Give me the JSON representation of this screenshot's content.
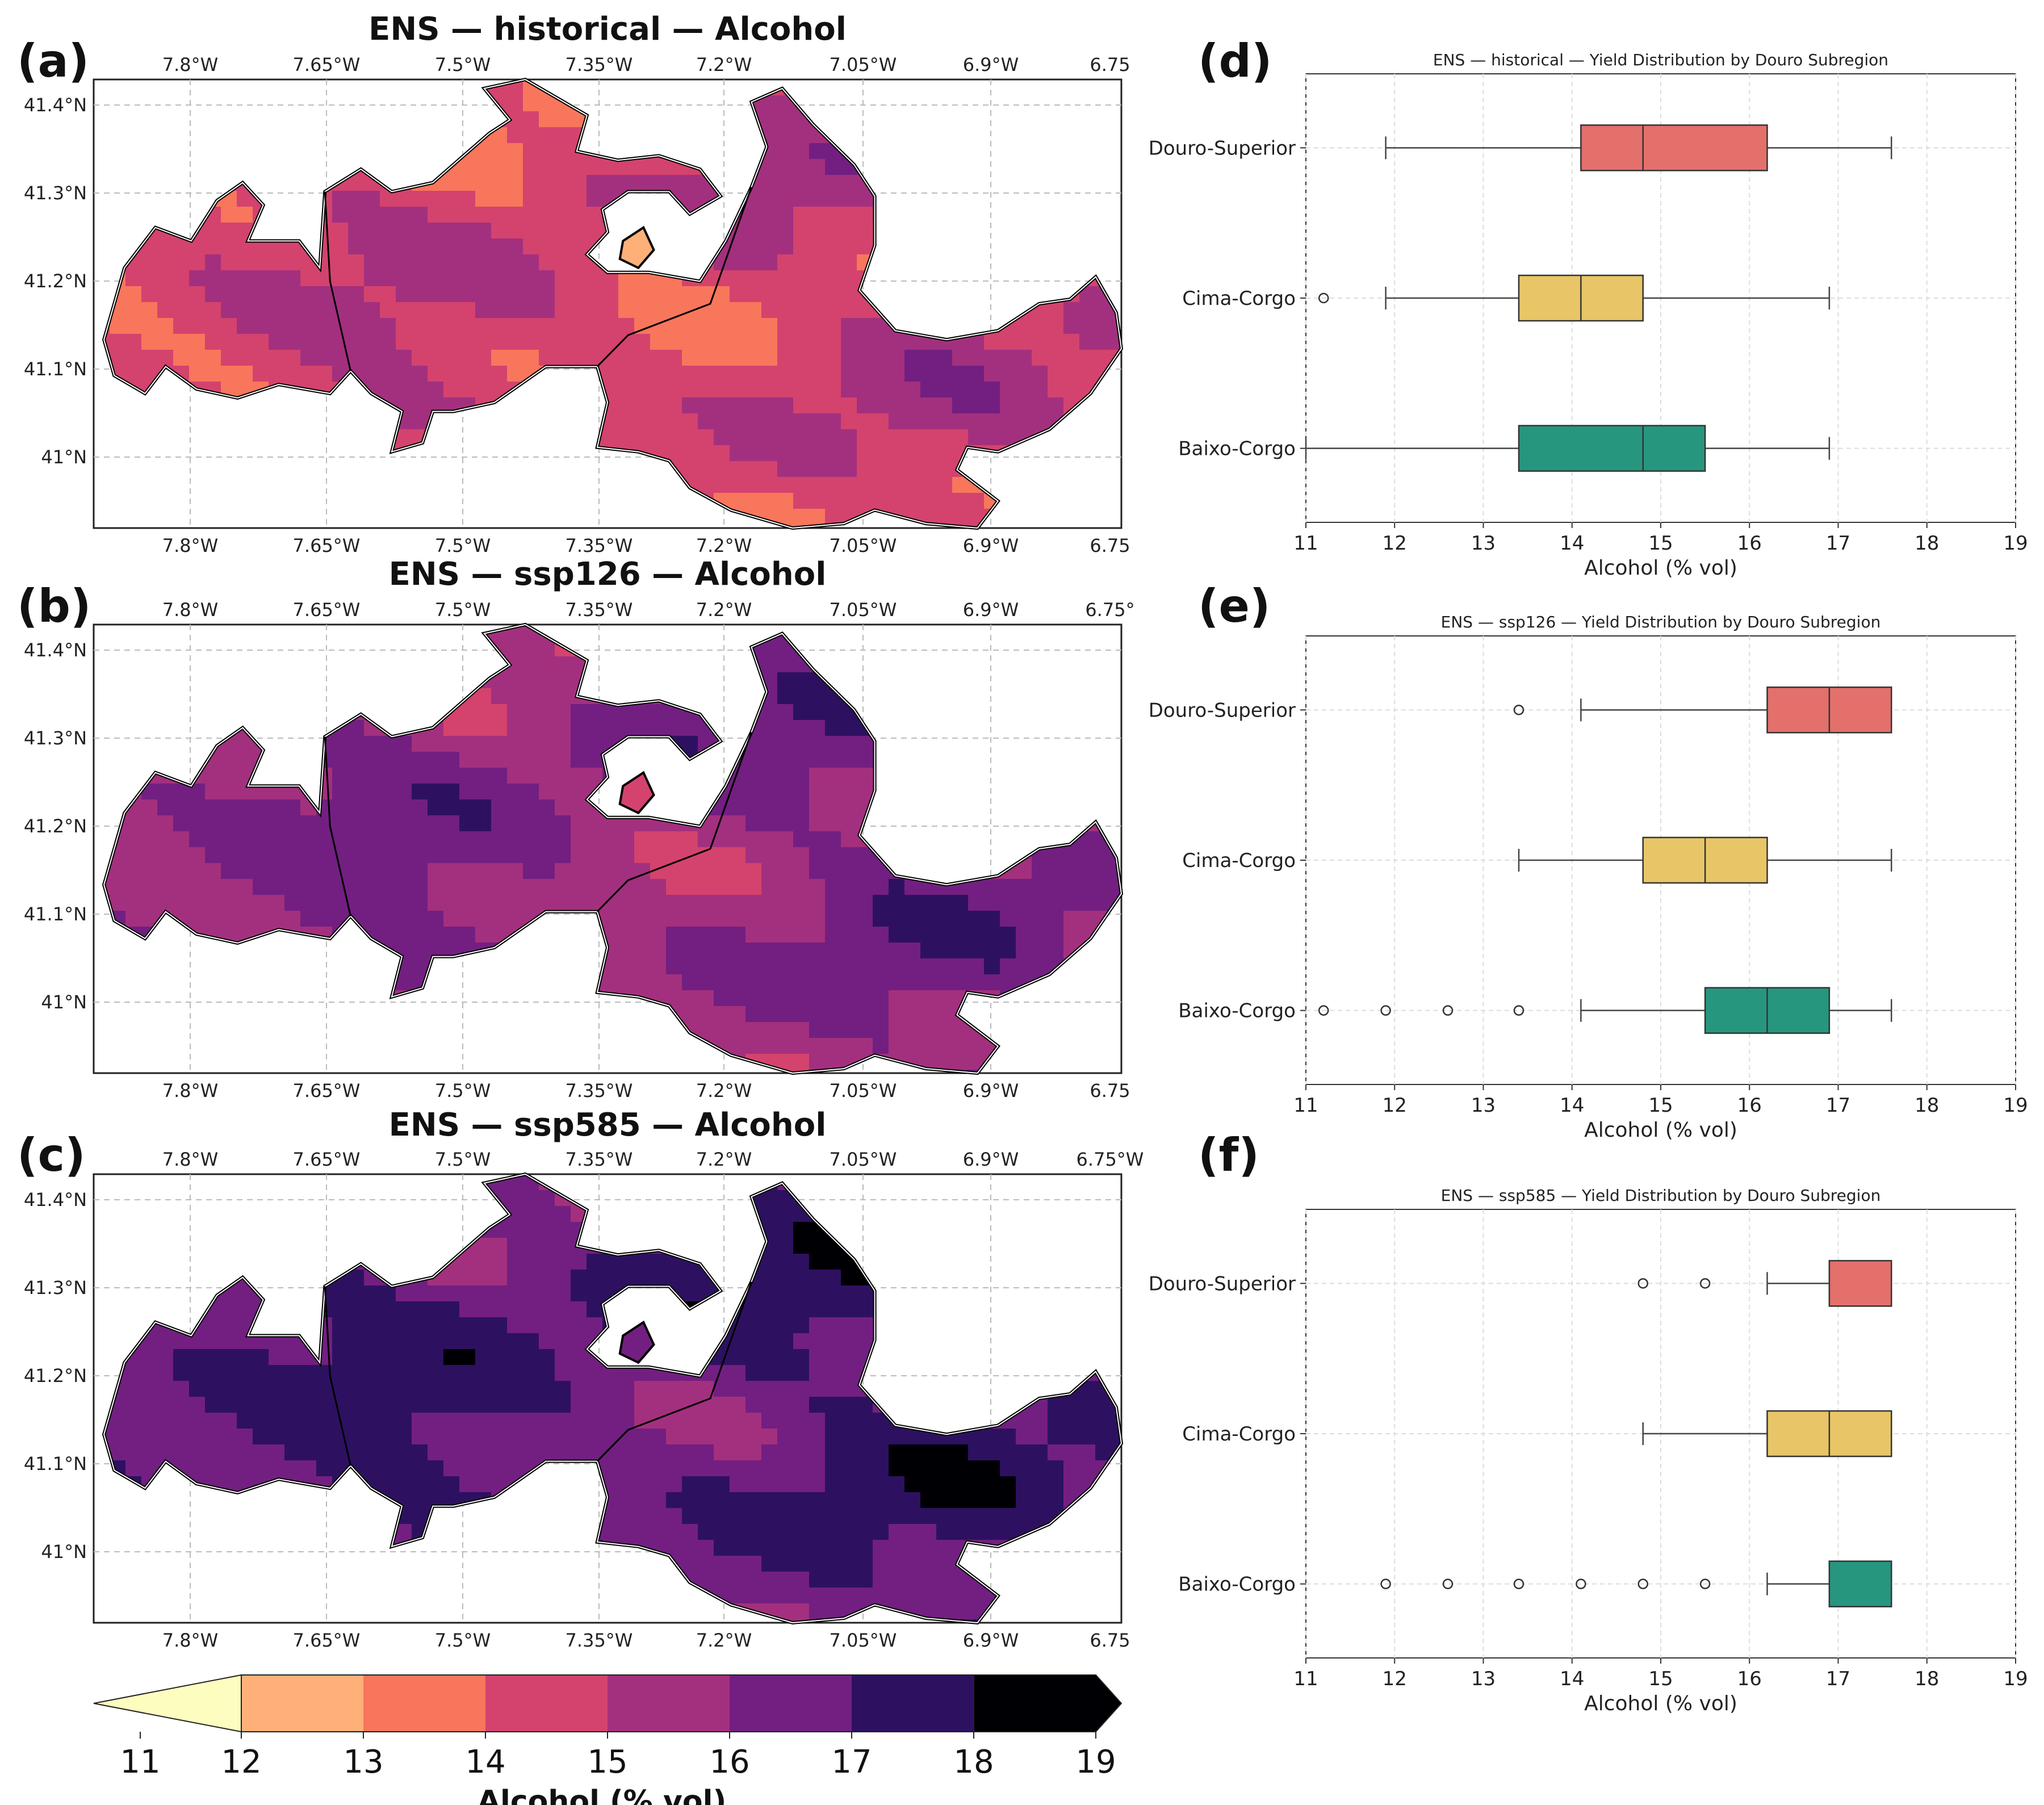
{
  "panels": {
    "a": {
      "letter": "(a)",
      "title": "ENS — historical — Alcohol"
    },
    "b": {
      "letter": "(b)",
      "title": "ENS — ssp126 — Alcohol"
    },
    "c": {
      "letter": "(c)",
      "title": "ENS — ssp585 — Alcohol"
    },
    "d": {
      "letter": "(d)"
    },
    "e": {
      "letter": "(e)"
    },
    "f": {
      "letter": "(f)"
    }
  },
  "map_axes": {
    "lon_top_a": [
      "7.8°W",
      "7.65°W",
      "7.5°W",
      "7.35°W",
      "7.2°W",
      "7.05°W",
      "6.9°W",
      "6.75"
    ],
    "lon_top_b": [
      "7.8°W",
      "7.65°W",
      "7.5°W",
      "7.35°W",
      "7.2°W",
      "7.05°W",
      "6.9°W",
      "6.75°"
    ],
    "lon_top_c": [
      "7.8°W",
      "7.65°W",
      "7.5°W",
      "7.35°W",
      "7.2°W",
      "7.05°W",
      "6.9°W",
      "6.75°W"
    ],
    "lon_bottom": [
      "7.8°W",
      "7.65°W",
      "7.5°W",
      "7.35°W",
      "7.2°W",
      "7.05°W",
      "6.9°W",
      "6.75"
    ],
    "lat": [
      "41.4°N",
      "41.3°N",
      "41.2°N",
      "41.1°N",
      "41°N"
    ]
  },
  "colorbar": {
    "label": "Alcohol (% vol)",
    "ticks": [
      "11",
      "12",
      "13",
      "14",
      "15",
      "16",
      "17",
      "18",
      "19"
    ],
    "colors": [
      "#fcfdbf",
      "#feb078",
      "#f8765c",
      "#d3436e",
      "#a3307e",
      "#721f81",
      "#2d1160",
      "#000004"
    ]
  },
  "chart_data": [
    {
      "type": "box",
      "title": "ENS — historical — Yield Distribution by Douro Subregion",
      "xlabel": "Alcohol (% vol)",
      "xlim": [
        11,
        19
      ],
      "xticks": [
        "11",
        "12",
        "13",
        "14",
        "15",
        "16",
        "17",
        "18",
        "19"
      ],
      "categories": [
        "Douro-Superior",
        "Cima-Corgo",
        "Baixo-Corgo"
      ],
      "colors": [
        "#e3706b",
        "#e8c667",
        "#27967f"
      ],
      "boxes": [
        {
          "name": "Douro-Superior",
          "whislo": 11.9,
          "q1": 14.1,
          "med": 14.8,
          "q3": 16.2,
          "whishi": 17.6,
          "fliers": []
        },
        {
          "name": "Cima-Corgo",
          "whislo": 11.9,
          "q1": 13.4,
          "med": 14.1,
          "q3": 14.8,
          "whishi": 16.9,
          "fliers": [
            11.2
          ]
        },
        {
          "name": "Baixo-Corgo",
          "whislo": 11.0,
          "q1": 13.4,
          "med": 14.8,
          "q3": 15.5,
          "whishi": 16.9,
          "fliers": []
        }
      ]
    },
    {
      "type": "box",
      "title": "ENS — ssp126 — Yield Distribution by Douro Subregion",
      "xlabel": "Alcohol (% vol)",
      "xlim": [
        11,
        19
      ],
      "xticks": [
        "11",
        "12",
        "13",
        "14",
        "15",
        "16",
        "17",
        "18",
        "19"
      ],
      "categories": [
        "Douro-Superior",
        "Cima-Corgo",
        "Baixo-Corgo"
      ],
      "colors": [
        "#e3706b",
        "#e8c667",
        "#27967f"
      ],
      "boxes": [
        {
          "name": "Douro-Superior",
          "whislo": 14.1,
          "q1": 16.2,
          "med": 16.9,
          "q3": 17.6,
          "whishi": 17.6,
          "fliers": [
            13.4
          ]
        },
        {
          "name": "Cima-Corgo",
          "whislo": 13.4,
          "q1": 14.8,
          "med": 15.5,
          "q3": 16.2,
          "whishi": 17.6,
          "fliers": []
        },
        {
          "name": "Baixo-Corgo",
          "whislo": 14.1,
          "q1": 15.5,
          "med": 16.2,
          "q3": 16.9,
          "whishi": 17.6,
          "fliers": [
            11.2,
            11.9,
            12.6,
            13.4
          ]
        }
      ]
    },
    {
      "type": "box",
      "title": "ENS — ssp585 — Yield Distribution by Douro Subregion",
      "xlabel": "Alcohol (% vol)",
      "xlim": [
        11,
        19
      ],
      "xticks": [
        "11",
        "12",
        "13",
        "14",
        "15",
        "16",
        "17",
        "18",
        "19"
      ],
      "categories": [
        "Douro-Superior",
        "Cima-Corgo",
        "Baixo-Corgo"
      ],
      "colors": [
        "#e3706b",
        "#e8c667",
        "#27967f"
      ],
      "boxes": [
        {
          "name": "Douro-Superior",
          "whislo": 16.2,
          "q1": 16.9,
          "med": 17.6,
          "q3": 17.6,
          "whishi": 17.6,
          "fliers": [
            14.8,
            15.5
          ]
        },
        {
          "name": "Cima-Corgo",
          "whislo": 14.8,
          "q1": 16.2,
          "med": 16.9,
          "q3": 17.6,
          "whishi": 17.6,
          "fliers": []
        },
        {
          "name": "Baixo-Corgo",
          "whislo": 16.2,
          "q1": 16.9,
          "med": 17.6,
          "q3": 17.6,
          "whishi": 17.6,
          "fliers": [
            11.9,
            12.6,
            13.4,
            14.1,
            14.8,
            15.5
          ]
        }
      ]
    }
  ]
}
